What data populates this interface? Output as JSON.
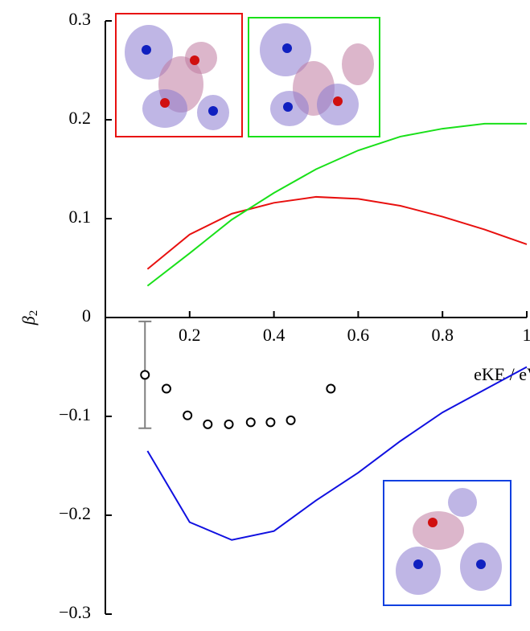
{
  "chart_data": {
    "type": "line",
    "xlabel": "eKE / eV",
    "ylabel": "β",
    "ylabel_sub": "2",
    "xlim": [
      0,
      1
    ],
    "ylim": [
      -0.3,
      0.3
    ],
    "xticks": [
      0.2,
      0.4,
      0.6,
      0.8,
      1
    ],
    "yticks": [
      {
        "value": -0.3,
        "label": "−0.3"
      },
      {
        "value": -0.2,
        "label": "−0.2"
      },
      {
        "value": -0.1,
        "label": "−0.1"
      },
      0,
      0.1,
      0.2,
      0.3
    ],
    "series": [
      {
        "color": "#e8100f",
        "x": [
          0.1,
          0.2,
          0.3,
          0.4,
          0.5,
          0.6,
          0.7,
          0.8,
          0.9,
          1.0
        ],
        "values": [
          0.049,
          0.084,
          0.105,
          0.116,
          0.122,
          0.12,
          0.113,
          0.102,
          0.089,
          0.074
        ]
      },
      {
        "color": "#19e019",
        "x": [
          0.1,
          0.2,
          0.3,
          0.4,
          0.5,
          0.6,
          0.7,
          0.8,
          0.9,
          1.0
        ],
        "values": [
          0.032,
          0.065,
          0.099,
          0.126,
          0.15,
          0.169,
          0.183,
          0.191,
          0.196,
          0.196
        ]
      },
      {
        "color": "#1010e0",
        "x": [
          0.1,
          0.2,
          0.3,
          0.4,
          0.5,
          0.6,
          0.7,
          0.8,
          0.9,
          1.0
        ],
        "values": [
          -0.135,
          -0.207,
          -0.225,
          -0.216,
          -0.185,
          -0.157,
          -0.125,
          -0.096,
          -0.073,
          -0.05
        ]
      }
    ],
    "points": {
      "color": "#000000",
      "x": [
        0.094,
        0.145,
        0.195,
        0.243,
        0.293,
        0.345,
        0.392,
        0.44,
        0.535
      ],
      "values": [
        -0.058,
        -0.072,
        -0.099,
        -0.108,
        -0.108,
        -0.106,
        -0.106,
        -0.104,
        -0.072
      ],
      "errors": [
        0.054,
        null,
        null,
        null,
        null,
        null,
        null,
        null,
        null
      ],
      "error_color": "#808080"
    }
  }
}
